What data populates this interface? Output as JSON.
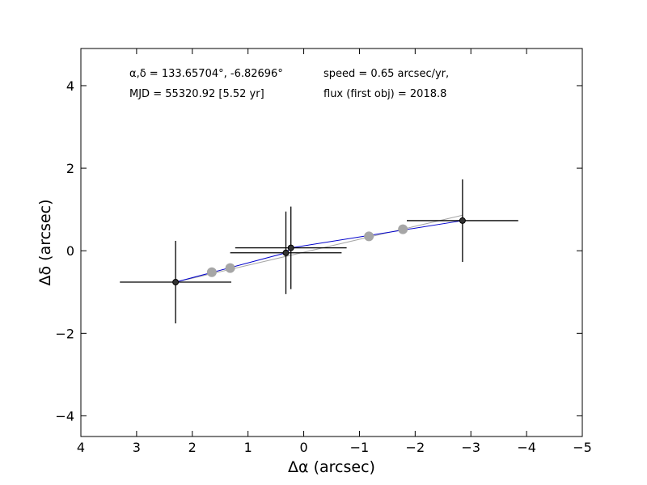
{
  "chart_data": {
    "type": "scatter",
    "xlabel": "Δα (arcsec)",
    "ylabel": "Δδ (arcsec)",
    "xlim": [
      4,
      -5
    ],
    "ylim": [
      -4.5,
      4.9
    ],
    "x_ticks": [
      4,
      3,
      2,
      1,
      0,
      -1,
      -2,
      -3,
      -4,
      -5
    ],
    "y_ticks": [
      4,
      2,
      0,
      -2,
      -4
    ],
    "x_tick_labels": [
      "4",
      "3",
      "2",
      "1",
      "0",
      "−1",
      "−2",
      "−3",
      "−4",
      "−5"
    ],
    "y_tick_labels": [
      "4",
      "2",
      "0",
      "−2",
      "−4"
    ],
    "annotations": {
      "coords": "α,δ = 133.65704°, -6.82696°",
      "mjd": "MJD = 55320.92 [5.52 yr]",
      "speed": "speed = 0.65 arcsec/yr,",
      "flux": "flux (first obj) = 2018.8"
    },
    "observed": {
      "color": "#000000",
      "points": [
        {
          "x": 2.3,
          "y": -0.76,
          "xerr": 1.0,
          "yerr": 1.0
        },
        {
          "x": 0.32,
          "y": -0.05,
          "xerr": 1.0,
          "yerr": 1.0
        },
        {
          "x": 0.23,
          "y": 0.07,
          "xerr": 1.0,
          "yerr": 1.0
        },
        {
          "x": -2.85,
          "y": 0.73,
          "xerr": 1.0,
          "yerr": 1.0
        }
      ]
    },
    "model_line": {
      "color": "#0000cc",
      "x": [
        2.3,
        0.32,
        0.23,
        -2.85
      ],
      "y": [
        -0.76,
        -0.05,
        0.07,
        0.73
      ]
    },
    "predicted": {
      "color": "#a6a6a6",
      "points": [
        {
          "x": 1.65,
          "y": -0.52
        },
        {
          "x": 1.32,
          "y": -0.42
        },
        {
          "x": -1.17,
          "y": 0.35
        },
        {
          "x": -1.78,
          "y": 0.52
        }
      ]
    },
    "fit_line": {
      "color": "#a6a6a6",
      "x": [
        2.3,
        -2.85
      ],
      "y": [
        -0.76,
        0.86
      ]
    },
    "grid": false
  }
}
